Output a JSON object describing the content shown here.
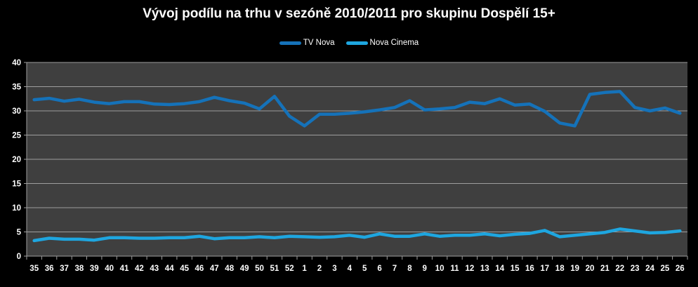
{
  "colors": {
    "page_background": "#000000",
    "plot_background": "#3F3F3F",
    "gridline": "#9E9E9E",
    "axis_text": "#FFFFFF",
    "title_text": "#FFFFFF",
    "tv_nova_line": "#1572B9",
    "nova_cinema_line": "#1EA6E0"
  },
  "chart_data": {
    "type": "line",
    "title": "Vývoj podílu na trhu v sezóně 2010/2011 pro skupinu Dospělí 15+",
    "xlabel": "",
    "ylabel": "",
    "ylim": [
      0,
      40
    ],
    "ytick_step": 5,
    "grid": "horizontal",
    "legend_position": "top-center",
    "plot_background": "#3F3F3F",
    "gridline_color": "#9E9E9E",
    "categories": [
      "35",
      "36",
      "37",
      "38",
      "39",
      "40",
      "41",
      "42",
      "43",
      "44",
      "45",
      "46",
      "47",
      "48",
      "49",
      "50",
      "51",
      "52",
      "1",
      "2",
      "3",
      "4",
      "5",
      "6",
      "7",
      "8",
      "9",
      "10",
      "11",
      "12",
      "13",
      "14",
      "15",
      "16",
      "17",
      "18",
      "19",
      "20",
      "21",
      "22",
      "23",
      "24",
      "25",
      "26"
    ],
    "series": [
      {
        "name": "TV Nova",
        "color": "#1572B9",
        "values": [
          32.3,
          32.6,
          32.0,
          32.4,
          31.8,
          31.5,
          31.9,
          31.9,
          31.4,
          31.3,
          31.5,
          31.9,
          32.8,
          32.1,
          31.6,
          30.4,
          33.0,
          28.9,
          26.9,
          29.3,
          29.3,
          29.5,
          29.8,
          30.2,
          30.7,
          32.1,
          30.2,
          30.4,
          30.7,
          31.8,
          31.5,
          32.5,
          31.2,
          31.4,
          29.9,
          27.5,
          26.9,
          33.4,
          33.8,
          34.0,
          30.7,
          30.0,
          30.6,
          29.5
        ]
      },
      {
        "name": "Nova Cinema",
        "color": "#1EA6E0",
        "values": [
          3.2,
          3.7,
          3.5,
          3.5,
          3.3,
          3.8,
          3.8,
          3.7,
          3.7,
          3.8,
          3.8,
          4.1,
          3.6,
          3.8,
          3.8,
          4.0,
          3.8,
          4.1,
          4.0,
          3.9,
          4.0,
          4.3,
          3.9,
          4.6,
          4.1,
          4.1,
          4.6,
          4.1,
          4.3,
          4.3,
          4.6,
          4.2,
          4.5,
          4.7,
          5.3,
          4.0,
          4.3,
          4.6,
          4.9,
          5.6,
          5.2,
          4.8,
          4.9,
          5.2
        ]
      }
    ],
    "yticks": [
      "0",
      "5",
      "10",
      "15",
      "20",
      "25",
      "30",
      "35",
      "40"
    ]
  }
}
